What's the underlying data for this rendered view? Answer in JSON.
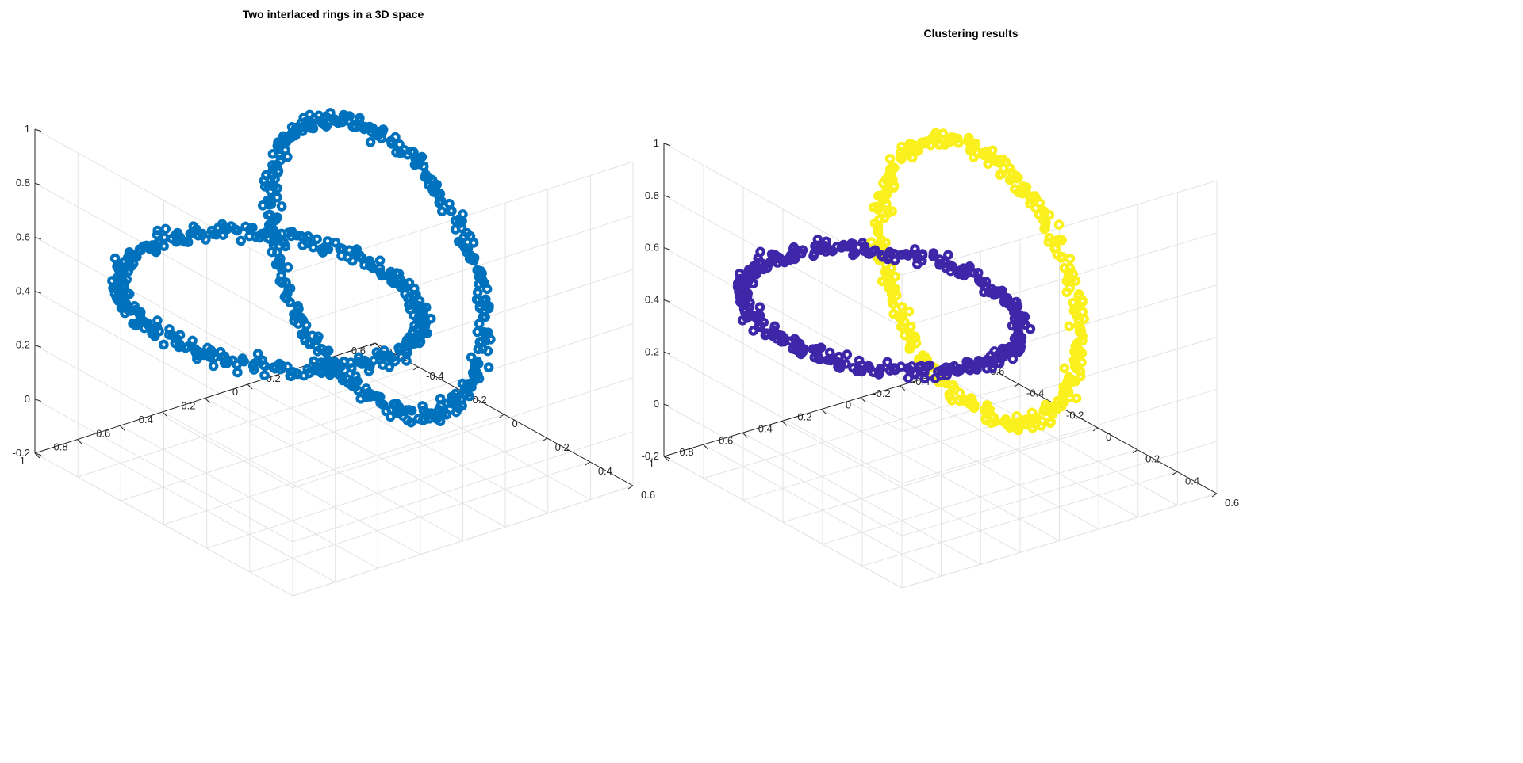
{
  "colors": {
    "ring_single": "#0072BD",
    "cluster_1": "#3E26A8",
    "cluster_2": "#F9F01E",
    "grid": "#e3e3e3",
    "axis": "#262626"
  },
  "chart_data": [
    {
      "type": "scatter3d",
      "title": "Two interlaced rings in a 3D space",
      "xlim": [
        -0.6,
        0.6
      ],
      "ylim": [
        -0.6,
        1.0
      ],
      "zlim": [
        -0.2,
        1.0
      ],
      "x_ticks": [
        "-0.6",
        "-0.4",
        "-0.2",
        "0",
        "0.2",
        "0.4",
        "0.6"
      ],
      "y_ticks": [
        "-0.6",
        "-0.4",
        "-0.2",
        "0",
        "0.2",
        "0.4",
        "0.6",
        "0.8",
        "1"
      ],
      "z_ticks": [
        "-0.2",
        "0",
        "0.2",
        "0.4",
        "0.6",
        "0.8",
        "1"
      ],
      "grid": true,
      "series": [
        {
          "ring": "horizontal",
          "center": [
            0.0,
            0.5,
            0.5
          ],
          "radius": 0.5,
          "plane": "xy",
          "points": 360,
          "color_key": "ring_single"
        },
        {
          "ring": "vertical",
          "center": [
            0.0,
            0.0,
            0.5
          ],
          "radius": 0.5,
          "plane": "xz",
          "points": 360,
          "color_key": "ring_single"
        }
      ]
    },
    {
      "type": "scatter3d",
      "title": "Clustering results",
      "xlim": [
        -0.6,
        0.6
      ],
      "ylim": [
        -0.6,
        1.0
      ],
      "zlim": [
        -0.2,
        1.0
      ],
      "x_ticks": [
        "-0.6",
        "-0.4",
        "-0.2",
        "0",
        "0.2",
        "0.4",
        "0.6"
      ],
      "y_ticks": [
        "-0.6",
        "-0.4",
        "-0.2",
        "0",
        "0.2",
        "0.4",
        "0.6",
        "0.8",
        "1"
      ],
      "z_ticks": [
        "-0.2",
        "0",
        "0.2",
        "0.4",
        "0.6",
        "0.8",
        "1"
      ],
      "grid": true,
      "series": [
        {
          "ring": "horizontal",
          "center": [
            0.0,
            0.5,
            0.5
          ],
          "radius": 0.5,
          "plane": "xy",
          "points": 360,
          "color_key": "cluster_1"
        },
        {
          "ring": "vertical",
          "center": [
            0.0,
            0.0,
            0.5
          ],
          "radius": 0.5,
          "plane": "xz",
          "points": 360,
          "color_key": "cluster_2"
        }
      ]
    }
  ]
}
